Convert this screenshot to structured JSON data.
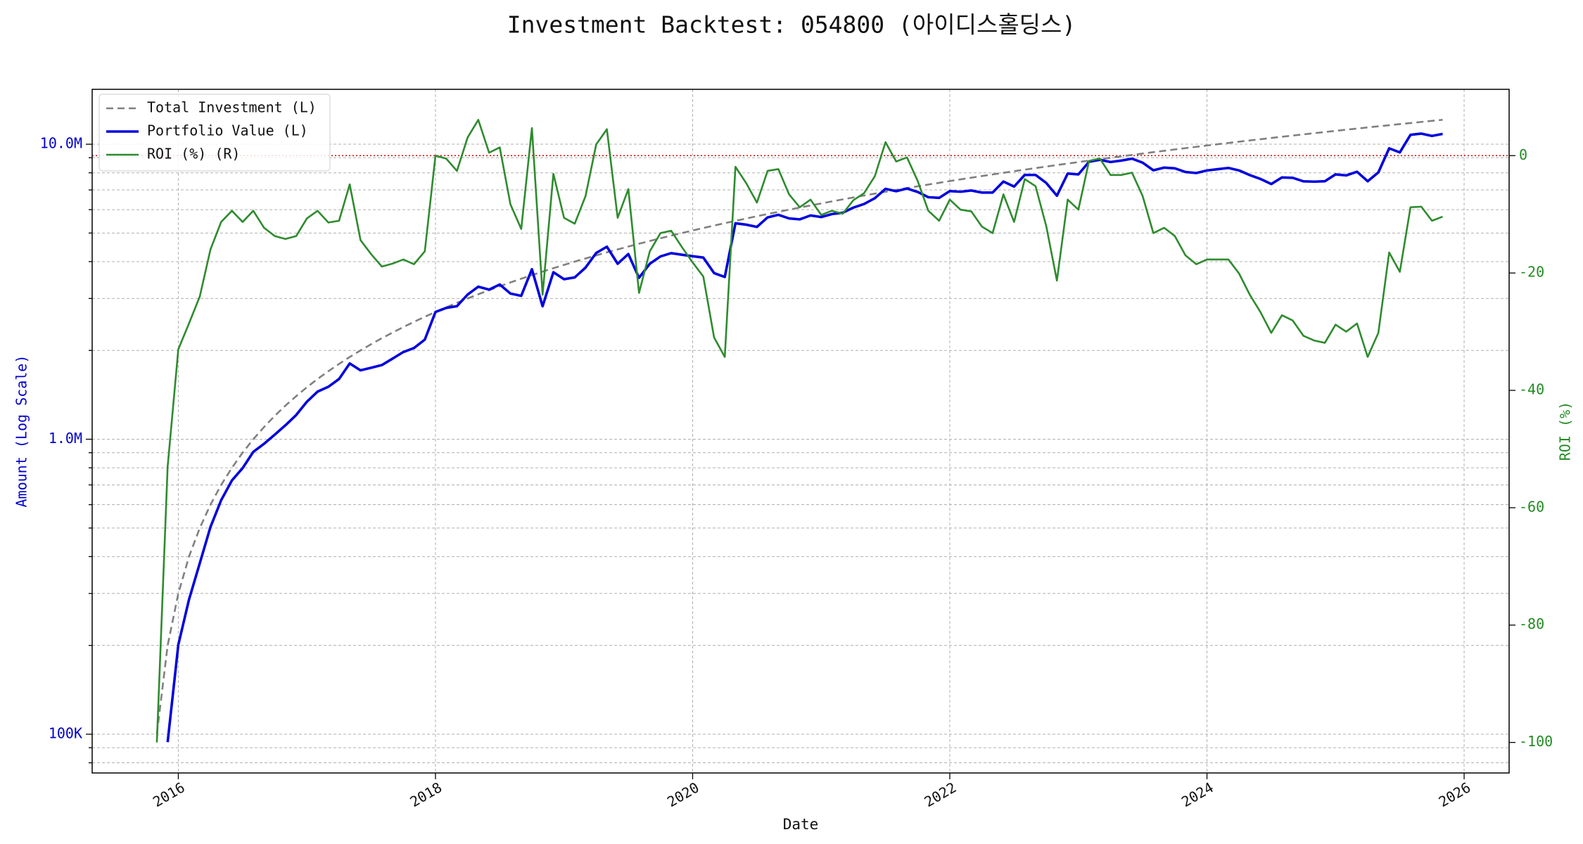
{
  "chart_data": {
    "type": "line",
    "title": "Investment Backtest: 054800 (아이디스홀딩스)",
    "x_label": "Date",
    "y_label": "Amount (Log Scale)",
    "y2_label": "ROI (%)",
    "y_scale": "log",
    "grid": true,
    "legend": "upper left",
    "y_label_color": "#0000cc",
    "y2_label_color": "#228b22",
    "xlim": [
      2015.33,
      2026.35
    ],
    "xticks": [
      2016,
      2018,
      2020,
      2022,
      2024,
      2026
    ],
    "ylim": [
      73900,
      15350000
    ],
    "yticks": [
      {
        "value": 100000,
        "label": "100K"
      },
      {
        "value": 1000000,
        "label": "1.0M"
      },
      {
        "value": 10000000,
        "label": "10.0M"
      }
    ],
    "y_minor_ticks": [
      80000,
      90000,
      200000,
      300000,
      400000,
      500000,
      600000,
      700000,
      800000,
      900000,
      2000000,
      3000000,
      4000000,
      5000000,
      6000000,
      7000000,
      8000000,
      9000000
    ],
    "y2lim": [
      -105.2,
      11.3
    ],
    "y2ticks": [
      0,
      -20,
      -40,
      -60,
      -80,
      -100
    ],
    "y2_reference_line": {
      "value": 0,
      "color": "#dd0000"
    },
    "x": [
      2015.833,
      2015.917,
      2016.0,
      2016.083,
      2016.167,
      2016.25,
      2016.333,
      2016.417,
      2016.5,
      2016.583,
      2016.667,
      2016.75,
      2016.833,
      2016.917,
      2017.0,
      2017.083,
      2017.167,
      2017.25,
      2017.333,
      2017.417,
      2017.5,
      2017.583,
      2017.667,
      2017.75,
      2017.833,
      2017.917,
      2018.0,
      2018.083,
      2018.167,
      2018.25,
      2018.333,
      2018.417,
      2018.5,
      2018.583,
      2018.667,
      2018.75,
      2018.833,
      2018.917,
      2019.0,
      2019.083,
      2019.167,
      2019.25,
      2019.333,
      2019.417,
      2019.5,
      2019.583,
      2019.667,
      2019.75,
      2019.833,
      2019.917,
      2020.0,
      2020.083,
      2020.167,
      2020.25,
      2020.333,
      2020.417,
      2020.5,
      2020.583,
      2020.667,
      2020.75,
      2020.833,
      2020.917,
      2021.0,
      2021.083,
      2021.167,
      2021.25,
      2021.333,
      2021.417,
      2021.5,
      2021.583,
      2021.667,
      2021.75,
      2021.833,
      2021.917,
      2022.0,
      2022.083,
      2022.167,
      2022.25,
      2022.333,
      2022.417,
      2022.5,
      2022.583,
      2022.667,
      2022.75,
      2022.833,
      2022.917,
      2023.0,
      2023.083,
      2023.167,
      2023.25,
      2023.333,
      2023.417,
      2023.5,
      2023.583,
      2023.667,
      2023.75,
      2023.833,
      2023.917,
      2024.0,
      2024.083,
      2024.167,
      2024.25,
      2024.333,
      2024.417,
      2024.5,
      2024.583,
      2024.667,
      2024.75,
      2024.833,
      2024.917,
      2025.0,
      2025.083,
      2025.167,
      2025.25,
      2025.333,
      2025.417,
      2025.5,
      2025.583,
      2025.667,
      2025.75,
      2025.833
    ],
    "series": [
      {
        "name": "Total Investment (L)",
        "color": "#808080",
        "dashed": true,
        "width": 2.6,
        "values": [
          100000,
          200000,
          300000,
          400000,
          500000,
          600000,
          700000,
          800000,
          900000,
          1000000,
          1100000,
          1200000,
          1300000,
          1400000,
          1500000,
          1600000,
          1700000,
          1800000,
          1900000,
          2000000,
          2100000,
          2200000,
          2300000,
          2400000,
          2500000,
          2600000,
          2700000,
          2800000,
          2900000,
          3000000,
          3100000,
          3200000,
          3300000,
          3400000,
          3500000,
          3600000,
          3700000,
          3800000,
          3900000,
          4000000,
          4100000,
          4200000,
          4300000,
          4400000,
          4500000,
          4600000,
          4700000,
          4800000,
          4900000,
          5000000,
          5100000,
          5200000,
          5300000,
          5400000,
          5500000,
          5600000,
          5700000,
          5800000,
          5900000,
          6000000,
          6100000,
          6200000,
          6300000,
          6400000,
          6500000,
          6600000,
          6700000,
          6800000,
          6900000,
          7000000,
          7100000,
          7200000,
          7300000,
          7400000,
          7500000,
          7600000,
          7700000,
          7800000,
          7900000,
          8000000,
          8100000,
          8200000,
          8300000,
          8400000,
          8500000,
          8600000,
          8700000,
          8800000,
          8900000,
          9000000,
          9100000,
          9200000,
          9300000,
          9400000,
          9500000,
          9600000,
          9700000,
          9800000,
          9900000,
          10000000,
          10100000,
          10200000,
          10300000,
          10400000,
          10500000,
          10600000,
          10700000,
          10800000,
          10900000,
          11000000,
          11100000,
          11200000,
          11300000,
          11400000,
          11500000,
          11600000,
          11700000,
          11800000,
          11900000,
          12000000,
          12100000
        ]
      },
      {
        "name": "Portfolio Value (L)",
        "color": "#0000dd",
        "dashed": false,
        "width": 3.6,
        "values": [
          null,
          94000,
          201000,
          286000,
          380000,
          504000,
          621000,
          725000,
          798000,
          906000,
          965000,
          1036000,
          1115000,
          1208000,
          1340000,
          1450000,
          1506000,
          1600000,
          1807000,
          1712000,
          1747000,
          1784000,
          1877000,
          1975000,
          2038000,
          2176000,
          2700000,
          2786000,
          2825000,
          3093000,
          3289000,
          3216000,
          3346000,
          3118000,
          3063000,
          3769000,
          2823000,
          3682000,
          3487000,
          3536000,
          3817000,
          4280000,
          4494000,
          3934000,
          4244000,
          3524000,
          3934000,
          4166000,
          4273000,
          4220000,
          4172000,
          4129000,
          3657000,
          3548000,
          5396000,
          5337000,
          5244000,
          5649000,
          5764000,
          5604000,
          5563000,
          5735000,
          5664000,
          5798000,
          5857000,
          6098000,
          6271000,
          6562000,
          7059000,
          6930000,
          7079000,
          6890000,
          6614000,
          6579000,
          6938000,
          6901000,
          6969000,
          6856000,
          6857000,
          7472000,
          7185000,
          7872000,
          7868000,
          7392000,
          6690000,
          7955000,
          7900000,
          8721000,
          8856000,
          8703000,
          8800000,
          8933000,
          8658000,
          8159000,
          8332000,
          8285000,
          8051000,
          7987000,
          8148000,
          8230000,
          8312000,
          8150000,
          7859000,
          7623000,
          7329000,
          7717000,
          7693000,
          7484000,
          7467000,
          7491000,
          7903000,
          7840000,
          8068000,
          7490000,
          8027000,
          9686000,
          9383000,
          10762000,
          10865000,
          10668000,
          10842000
        ]
      },
      {
        "name": "ROI (%) (R)",
        "color": "#2e8b2e",
        "dashed": false,
        "width": 2.6,
        "axis": "y2",
        "values": [
          -100,
          -53,
          -33,
          -28.6,
          -24,
          -16,
          -11.3,
          -9.4,
          -11.3,
          -9.4,
          -12.3,
          -13.7,
          -14.2,
          -13.7,
          -10.7,
          -9.4,
          -11.4,
          -11.1,
          -4.9,
          -14.4,
          -16.8,
          -18.9,
          -18.4,
          -17.7,
          -18.5,
          -16.3,
          0,
          -0.5,
          -2.6,
          3.1,
          6.1,
          0.5,
          1.4,
          -8.3,
          -12.5,
          4.7,
          -23.7,
          -3.1,
          -10.6,
          -11.6,
          -6.9,
          1.9,
          4.5,
          -10.6,
          -5.7,
          -23.4,
          -16.3,
          -13.2,
          -12.8,
          -15.6,
          -18.2,
          -20.6,
          -31,
          -34.3,
          -1.9,
          -4.7,
          -8,
          -2.6,
          -2.3,
          -6.6,
          -8.8,
          -7.5,
          -10.1,
          -9.4,
          -9.9,
          -7.6,
          -6.4,
          -3.5,
          2.3,
          -1,
          -0.3,
          -4.3,
          -9.4,
          -11.1,
          -7.5,
          -9.2,
          -9.5,
          -12.1,
          -13.2,
          -6.6,
          -11.3,
          -4,
          -5.2,
          -12,
          -21.3,
          -7.5,
          -9.2,
          -0.9,
          -0.5,
          -3.3,
          -3.3,
          -2.9,
          -6.9,
          -13.2,
          -12.3,
          -13.7,
          -17,
          -18.5,
          -17.7,
          -17.7,
          -17.7,
          -20.1,
          -23.7,
          -26.7,
          -30.2,
          -27.2,
          -28.1,
          -30.7,
          -31.5,
          -31.9,
          -28.8,
          -30,
          -28.6,
          -34.3,
          -30.2,
          -16.5,
          -19.8,
          -8.8,
          -8.7,
          -11.1,
          -10.4
        ]
      }
    ]
  }
}
